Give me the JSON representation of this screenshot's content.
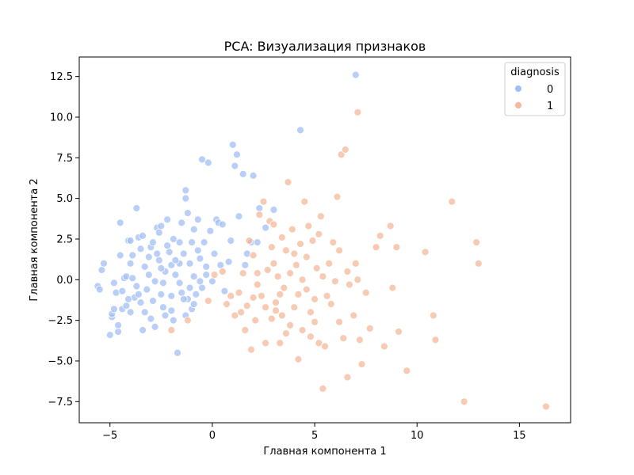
{
  "chart_data": {
    "type": "scatter",
    "title": "PCA: Визуализация признаков",
    "xlabel": "Главная компонента 1",
    "ylabel": "Главная компонента 2",
    "xlim": [
      -6.5,
      17.5
    ],
    "ylim": [
      -8.8,
      13.7
    ],
    "xticks": [
      -5,
      0,
      5,
      10,
      15
    ],
    "yticks": [
      -7.5,
      -5.0,
      -2.5,
      0.0,
      2.5,
      5.0,
      7.5,
      10.0,
      12.5
    ],
    "xtick_labels": [
      "−5",
      "0",
      "5",
      "10",
      "15"
    ],
    "ytick_labels": [
      "−7.5",
      "−5.0",
      "−2.5",
      "0.0",
      "2.5",
      "5.0",
      "7.5",
      "10.0",
      "12.5"
    ],
    "grid": false,
    "legend": {
      "title": "diagnosis",
      "placement": "top-right",
      "entries": [
        "0",
        "1"
      ]
    },
    "series": [
      {
        "name": "0",
        "color": "#a3bff5",
        "points": [
          [
            -5.6,
            -0.4
          ],
          [
            -5.5,
            -0.6
          ],
          [
            -5.4,
            0.6
          ],
          [
            -5.3,
            1.0
          ],
          [
            -5.0,
            -3.4
          ],
          [
            -4.9,
            -2.3
          ],
          [
            -4.9,
            -2.1
          ],
          [
            -4.8,
            -1.8
          ],
          [
            -4.7,
            -0.8
          ],
          [
            -4.6,
            -3.2
          ],
          [
            -4.6,
            -2.8
          ],
          [
            -4.5,
            3.5
          ],
          [
            -4.5,
            1.5
          ],
          [
            -4.4,
            -0.7
          ],
          [
            -4.4,
            -1.8
          ],
          [
            -4.3,
            0.1
          ],
          [
            -4.2,
            0.2
          ],
          [
            -4.1,
            2.4
          ],
          [
            -4.0,
            2.4
          ],
          [
            -4.0,
            1.0
          ],
          [
            -4.0,
            -2.0
          ],
          [
            -3.9,
            0.1
          ],
          [
            -3.8,
            -1.1
          ],
          [
            -3.7,
            4.4
          ],
          [
            -3.6,
            2.6
          ],
          [
            -3.5,
            1.9
          ],
          [
            -3.5,
            -1.4
          ],
          [
            -3.4,
            2.7
          ],
          [
            -3.4,
            -3.1
          ],
          [
            -3.3,
            0.8
          ],
          [
            -3.2,
            -0.6
          ],
          [
            -3.1,
            1.4
          ],
          [
            -3.0,
            2.0
          ],
          [
            -3.0,
            -2.4
          ],
          [
            -2.9,
            2.3
          ],
          [
            -2.8,
            -0.1
          ],
          [
            -2.7,
            3.2
          ],
          [
            -2.6,
            2.9
          ],
          [
            -2.6,
            1.2
          ],
          [
            -2.5,
            3.3
          ],
          [
            -2.5,
            -0.9
          ],
          [
            -2.4,
            -1.7
          ],
          [
            -2.3,
            -2.2
          ],
          [
            -2.3,
            0.5
          ],
          [
            -2.2,
            3.7
          ],
          [
            -2.1,
            1.7
          ],
          [
            -2.0,
            0.9
          ],
          [
            -2.0,
            -1.0
          ],
          [
            -1.9,
            2.5
          ],
          [
            -1.9,
            -2.5
          ],
          [
            -1.8,
            0.3
          ],
          [
            -1.7,
            -4.5
          ],
          [
            -1.6,
            1.0
          ],
          [
            -1.6,
            2.3
          ],
          [
            -1.5,
            3.5
          ],
          [
            -1.5,
            -0.8
          ],
          [
            -1.4,
            1.6
          ],
          [
            -1.3,
            5.5
          ],
          [
            -1.3,
            5.0
          ],
          [
            -1.2,
            4.1
          ],
          [
            -1.2,
            -1.2
          ],
          [
            -1.1,
            1.0
          ],
          [
            -1.0,
            2.3
          ],
          [
            -1.0,
            -1.8
          ],
          [
            -0.9,
            3.1
          ],
          [
            -0.9,
            0.2
          ],
          [
            -0.8,
            -0.9
          ],
          [
            -0.7,
            3.7
          ],
          [
            -0.6,
            1.3
          ],
          [
            -0.5,
            -0.5
          ],
          [
            -0.5,
            7.4
          ],
          [
            -0.4,
            2.3
          ],
          [
            -0.3,
            0.3
          ],
          [
            -0.2,
            7.2
          ],
          [
            -0.1,
            3.0
          ],
          [
            0.0,
            -0.1
          ],
          [
            0.1,
            1.6
          ],
          [
            0.2,
            3.7
          ],
          [
            0.3,
            3.5
          ],
          [
            0.4,
            0.9
          ],
          [
            0.5,
            3.4
          ],
          [
            0.6,
            -0.7
          ],
          [
            0.8,
            1.1
          ],
          [
            0.9,
            2.4
          ],
          [
            1.0,
            8.3
          ],
          [
            1.1,
            7.0
          ],
          [
            1.2,
            7.7
          ],
          [
            1.3,
            3.9
          ],
          [
            1.5,
            6.5
          ],
          [
            1.6,
            0.9
          ],
          [
            1.7,
            1.6
          ],
          [
            1.9,
            2.3
          ],
          [
            2.0,
            6.4
          ],
          [
            2.2,
            2.3
          ],
          [
            2.3,
            4.4
          ],
          [
            2.6,
            3.2
          ],
          [
            3.0,
            4.3
          ],
          [
            4.3,
            9.2
          ],
          [
            7.0,
            12.6
          ],
          [
            -4.8,
            -0.2
          ],
          [
            -4.2,
            -1.6
          ],
          [
            -3.7,
            -0.4
          ],
          [
            -3.3,
            -2.0
          ],
          [
            -2.9,
            -1.3
          ],
          [
            -2.4,
            -0.2
          ],
          [
            -2.0,
            -1.9
          ],
          [
            -1.6,
            -0.2
          ],
          [
            -1.3,
            -2.2
          ],
          [
            -0.9,
            -1.5
          ],
          [
            -0.6,
            -0.1
          ],
          [
            -3.1,
            0.3
          ],
          [
            -2.7,
            1.6
          ],
          [
            -2.2,
            2.1
          ],
          [
            -1.8,
            1.2
          ],
          [
            -1.1,
            -0.5
          ],
          [
            -0.7,
            1.8
          ],
          [
            -2.8,
            -2.9
          ],
          [
            -3.6,
            -0.9
          ],
          [
            -4.1,
            -1.2
          ],
          [
            -0.3,
            0.8
          ],
          [
            -2.5,
            0.7
          ],
          [
            -1.4,
            -1.2
          ],
          [
            -3.9,
            1.5
          ]
        ]
      },
      {
        "name": "1",
        "color": "#f4b89a",
        "points": [
          [
            -2.0,
            -3.1
          ],
          [
            -1.2,
            -2.5
          ],
          [
            -0.2,
            -1.3
          ],
          [
            0.1,
            0.3
          ],
          [
            0.5,
            0.5
          ],
          [
            0.7,
            -1.5
          ],
          [
            0.9,
            -1.0
          ],
          [
            1.1,
            -2.2
          ],
          [
            1.3,
            -0.8
          ],
          [
            1.4,
            -2.0
          ],
          [
            1.6,
            -3.1
          ],
          [
            1.8,
            2.4
          ],
          [
            1.9,
            -4.3
          ],
          [
            2.0,
            1.5
          ],
          [
            2.1,
            -2.5
          ],
          [
            2.2,
            0.4
          ],
          [
            2.3,
            4.0
          ],
          [
            2.4,
            -1.0
          ],
          [
            2.5,
            4.8
          ],
          [
            2.6,
            -3.9
          ],
          [
            2.7,
            0.6
          ],
          [
            2.8,
            3.6
          ],
          [
            2.9,
            -2.4
          ],
          [
            3.0,
            3.4
          ],
          [
            3.1,
            -1.4
          ],
          [
            3.2,
            0.2
          ],
          [
            3.3,
            -3.9
          ],
          [
            3.4,
            2.6
          ],
          [
            3.5,
            -0.5
          ],
          [
            3.6,
            1.8
          ],
          [
            3.7,
            6.0
          ],
          [
            3.8,
            -2.8
          ],
          [
            3.9,
            3.1
          ],
          [
            4.0,
            -1.7
          ],
          [
            4.1,
            0.9
          ],
          [
            4.2,
            -4.9
          ],
          [
            4.3,
            2.2
          ],
          [
            4.4,
            -3.1
          ],
          [
            4.5,
            4.8
          ],
          [
            4.6,
            -0.6
          ],
          [
            4.7,
            3.3
          ],
          [
            4.8,
            -2.0
          ],
          [
            4.9,
            2.4
          ],
          [
            5.0,
            -1.2
          ],
          [
            5.1,
            0.7
          ],
          [
            5.2,
            -3.9
          ],
          [
            5.3,
            3.9
          ],
          [
            5.4,
            -6.7
          ],
          [
            5.5,
            -4.1
          ],
          [
            5.6,
            -1.0
          ],
          [
            5.7,
            1.0
          ],
          [
            5.9,
            2.3
          ],
          [
            6.0,
            -0.1
          ],
          [
            6.1,
            5.1
          ],
          [
            6.2,
            1.8
          ],
          [
            6.3,
            7.7
          ],
          [
            6.4,
            -3.6
          ],
          [
            6.5,
            8.0
          ],
          [
            6.6,
            -6.0
          ],
          [
            6.7,
            -0.3
          ],
          [
            6.9,
            -2.2
          ],
          [
            7.0,
            1.0
          ],
          [
            7.1,
            10.3
          ],
          [
            7.2,
            -3.7
          ],
          [
            7.3,
            -5.2
          ],
          [
            7.5,
            -0.8
          ],
          [
            7.7,
            -3.0
          ],
          [
            8.0,
            2.0
          ],
          [
            8.2,
            2.7
          ],
          [
            8.4,
            -4.1
          ],
          [
            8.7,
            3.3
          ],
          [
            8.8,
            -0.5
          ],
          [
            9.0,
            2.0
          ],
          [
            9.1,
            -3.2
          ],
          [
            9.5,
            -5.6
          ],
          [
            10.4,
            1.7
          ],
          [
            10.8,
            -2.2
          ],
          [
            10.9,
            -3.7
          ],
          [
            11.7,
            4.8
          ],
          [
            12.3,
            -7.5
          ],
          [
            12.9,
            2.3
          ],
          [
            13.0,
            1.0
          ],
          [
            16.3,
            -7.8
          ],
          [
            2.2,
            -0.3
          ],
          [
            2.6,
            -1.7
          ],
          [
            3.0,
            1.0
          ],
          [
            3.4,
            -2.2
          ],
          [
            3.8,
            0.4
          ],
          [
            4.2,
            -0.9
          ],
          [
            4.6,
            1.4
          ],
          [
            5.0,
            -2.6
          ],
          [
            5.4,
            0.2
          ],
          [
            5.8,
            -1.5
          ],
          [
            6.2,
            -2.6
          ],
          [
            6.6,
            0.5
          ],
          [
            3.3,
            -0.9
          ],
          [
            2.9,
            2.0
          ],
          [
            4.0,
            1.6
          ],
          [
            3.6,
            -3.3
          ],
          [
            4.8,
            -3.5
          ],
          [
            5.2,
            2.8
          ],
          [
            1.5,
            0.4
          ],
          [
            2.0,
            -1.1
          ],
          [
            7.1,
            0.0
          ],
          [
            4.4,
            0.0
          ],
          [
            3.1,
            -1.9
          ],
          [
            1.7,
            -1.6
          ]
        ]
      }
    ]
  }
}
